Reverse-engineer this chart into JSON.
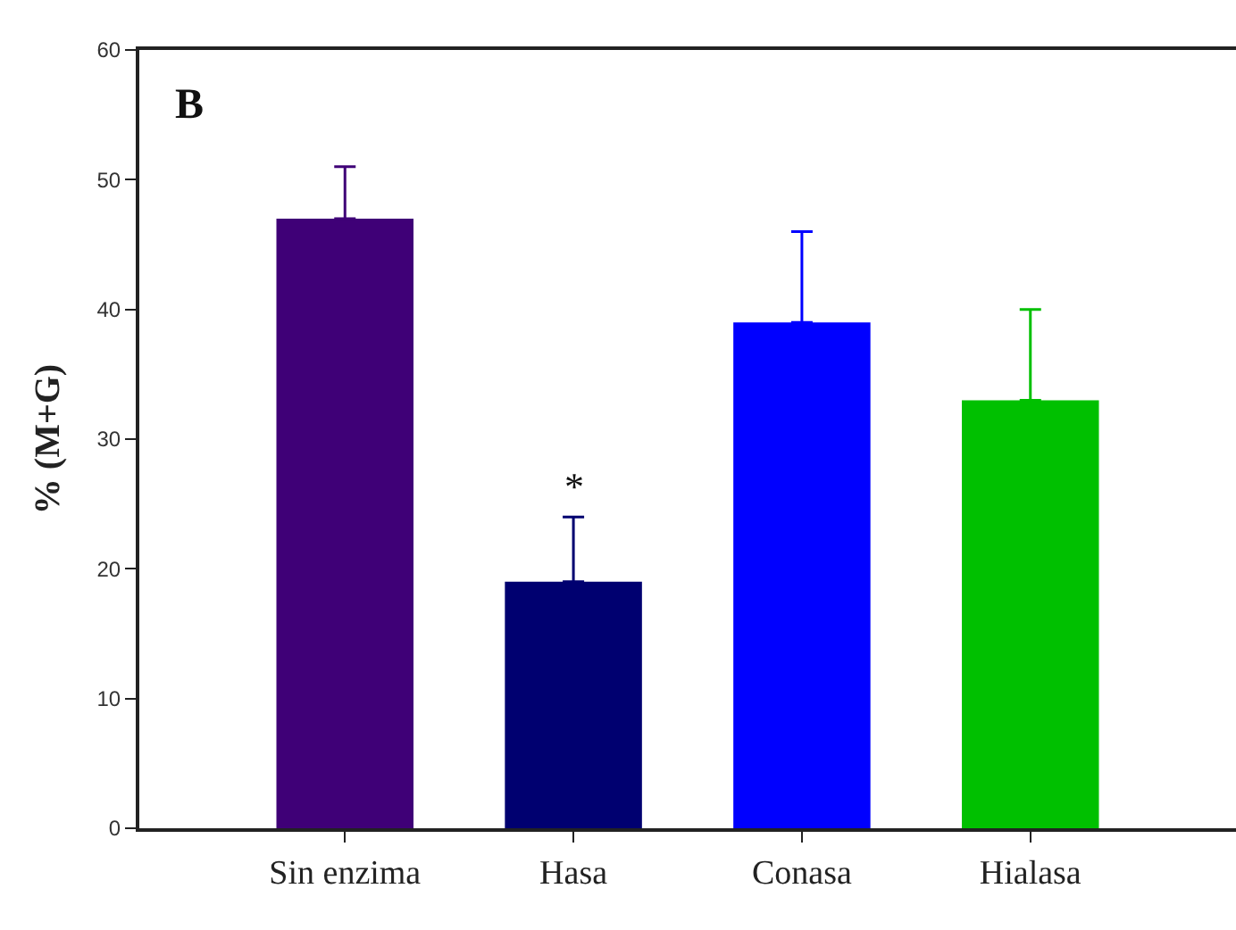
{
  "chart_data": {
    "type": "bar",
    "ylabel": "% (M+G)",
    "categories": [
      "Sin enzima",
      "Hasa",
      "Conasa",
      "Hialasa"
    ],
    "values": [
      47,
      19,
      39,
      33
    ],
    "colors": [
      "#3f0077",
      "#000070",
      "#0000ff",
      "#00c000"
    ],
    "errors": [
      [
        47,
        51
      ],
      [
        19,
        24
      ],
      [
        39,
        46
      ],
      [
        33,
        40
      ]
    ],
    "ylim": [
      0,
      60
    ],
    "yticks": [
      0,
      10,
      20,
      30,
      40,
      50,
      60
    ],
    "annotations": [
      "B",
      "*"
    ]
  }
}
